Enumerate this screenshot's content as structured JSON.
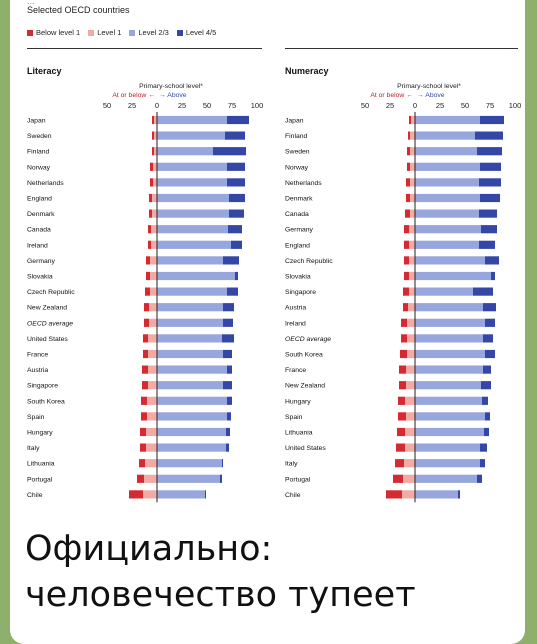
{
  "figure": {
    "header_partial": "...",
    "subtitle": "Selected OECD countries",
    "legend": [
      {
        "label": "Below level 1",
        "color": "#d42a32"
      },
      {
        "label": "Level 1",
        "color": "#f2aaa4"
      },
      {
        "label": "Level 2/3",
        "color": "#97a6dc"
      },
      {
        "label": "Level 4/5",
        "color": "#3447a6"
      }
    ]
  },
  "chart_data": [
    {
      "type": "bar",
      "stacked": "diverging",
      "title": "Literacy",
      "axis_title": "Primary-school level*",
      "axis_direction_left": "At or below ←",
      "axis_direction_right": "→ Above",
      "xlim": [
        -50,
        100
      ],
      "xticks": [
        "50",
        "25",
        "0",
        "25",
        "50",
        "75",
        "100"
      ],
      "categories": [
        "Japan",
        "Sweden",
        "Finland",
        "Norway",
        "Netherlands",
        "England",
        "Denmark",
        "Canada",
        "Ireland",
        "Germany",
        "Slovakia",
        "Czech Republic",
        "New Zealand",
        "OECD average",
        "United States",
        "France",
        "Austria",
        "Singapore",
        "South Korea",
        "Spain",
        "Hungary",
        "Italy",
        "Lithuania",
        "Portugal",
        "Chile"
      ],
      "series": [
        {
          "name": "Below level 1",
          "values": [
            2,
            2,
            2,
            3,
            3,
            3,
            3,
            3,
            3,
            4,
            4,
            5,
            5,
            5,
            5,
            5,
            6,
            6,
            6,
            6,
            6,
            6,
            6,
            7,
            14
          ]
        },
        {
          "name": "Level 1",
          "values": [
            3,
            3,
            3,
            4,
            4,
            5,
            5,
            6,
            6,
            7,
            7,
            7,
            8,
            8,
            9,
            9,
            9,
            9,
            10,
            10,
            11,
            11,
            12,
            13,
            14
          ]
        },
        {
          "name": "Level 2/3",
          "values": [
            70,
            68,
            56,
            70,
            70,
            72,
            72,
            71,
            74,
            66,
            78,
            70,
            66,
            66,
            65,
            66,
            70,
            66,
            70,
            70,
            69,
            69,
            65,
            63,
            48
          ]
        },
        {
          "name": "Level 4/5",
          "values": [
            22,
            20,
            33,
            18,
            18,
            16,
            15,
            14,
            11,
            16,
            3,
            11,
            11,
            10,
            12,
            9,
            5,
            9,
            5,
            4,
            4,
            3,
            1,
            2,
            1
          ]
        }
      ]
    },
    {
      "type": "bar",
      "stacked": "diverging",
      "title": "Numeracy",
      "axis_title": "Primary-school level*",
      "axis_direction_left": "At or below ←",
      "axis_direction_right": "→ Above",
      "xlim": [
        -50,
        100
      ],
      "xticks": [
        "50",
        "25",
        "0",
        "25",
        "50",
        "75",
        "100"
      ],
      "categories": [
        "Japan",
        "Finland",
        "Sweden",
        "Norway",
        "Netherlands",
        "Denmark",
        "Canada",
        "Germany",
        "England",
        "Czech Republic",
        "Slovakia",
        "Singapore",
        "Austria",
        "Ireland",
        "OECD average",
        "South Korea",
        "France",
        "New Zealand",
        "Hungary",
        "Spain",
        "Lithuania",
        "United States",
        "Italy",
        "Portugal",
        "Chile"
      ],
      "series": [
        {
          "name": "Below level 1",
          "values": [
            2,
            2,
            3,
            3,
            4,
            4,
            5,
            5,
            5,
            5,
            5,
            6,
            5,
            6,
            6,
            7,
            7,
            7,
            7,
            8,
            8,
            9,
            9,
            10,
            16
          ]
        },
        {
          "name": "Level 1",
          "values": [
            4,
            5,
            5,
            5,
            5,
            5,
            5,
            6,
            6,
            6,
            6,
            6,
            7,
            8,
            8,
            8,
            9,
            9,
            10,
            9,
            10,
            10,
            11,
            12,
            13
          ]
        },
        {
          "name": "Level 2/3",
          "values": [
            65,
            60,
            62,
            65,
            64,
            65,
            64,
            66,
            64,
            70,
            76,
            58,
            68,
            70,
            68,
            70,
            68,
            66,
            67,
            70,
            69,
            65,
            65,
            62,
            43
          ]
        },
        {
          "name": "Level 4/5",
          "values": [
            24,
            28,
            25,
            21,
            22,
            20,
            18,
            16,
            16,
            14,
            4,
            20,
            13,
            10,
            10,
            10,
            8,
            10,
            6,
            5,
            5,
            7,
            5,
            5,
            2
          ]
        }
      ]
    }
  ],
  "caption": {
    "line1": "Официально:",
    "line2": "человечество тупеет"
  }
}
